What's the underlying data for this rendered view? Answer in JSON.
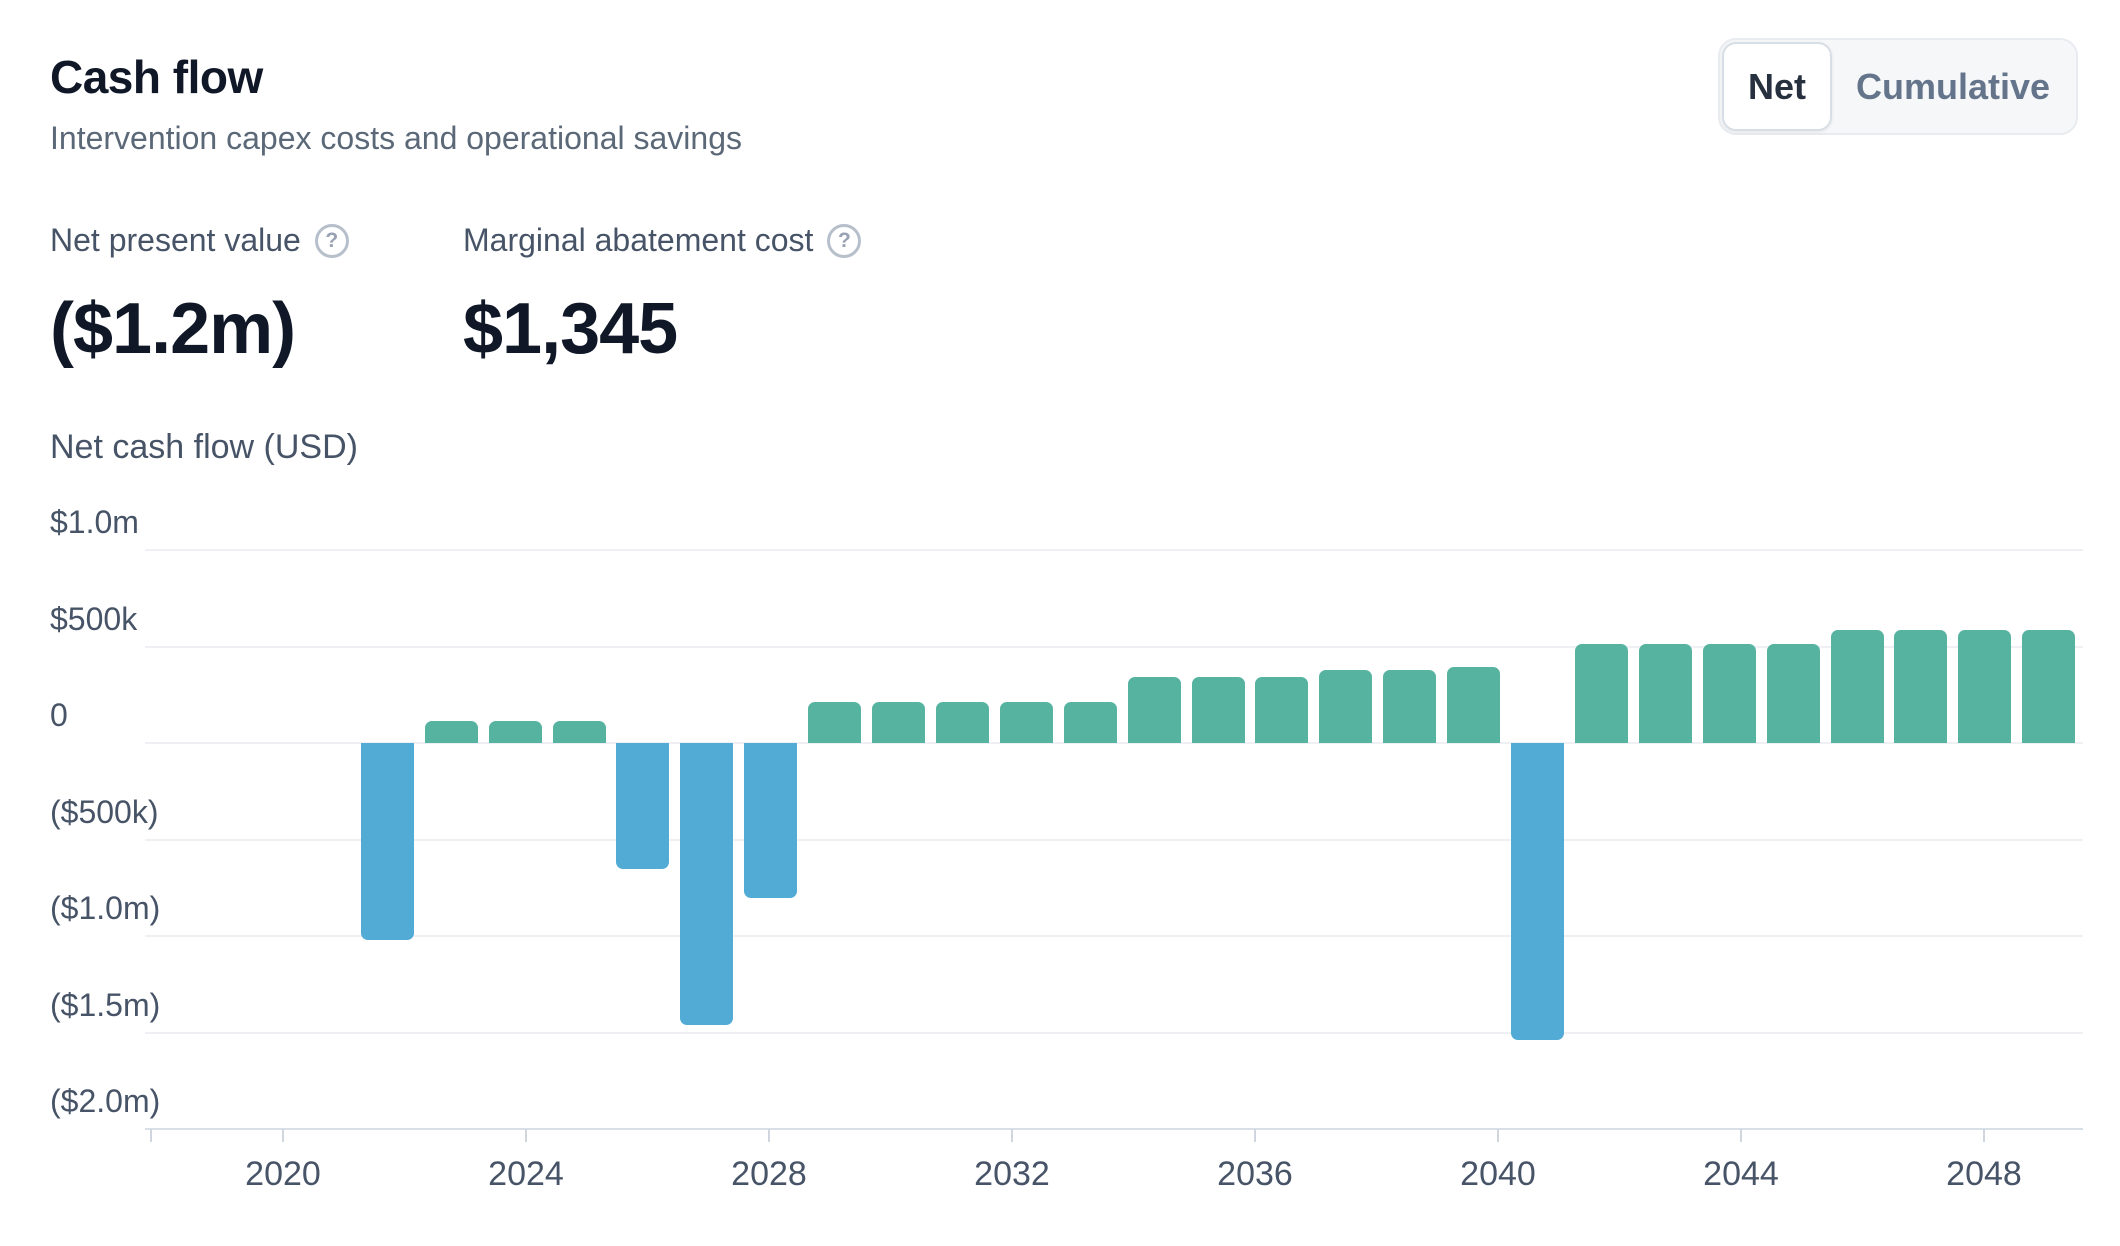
{
  "header": {
    "title": "Cash flow",
    "subtitle": "Intervention capex costs and operational savings"
  },
  "toggle": {
    "options": [
      "Net",
      "Cumulative"
    ],
    "selected": "Net"
  },
  "metrics": [
    {
      "label": "Net present value",
      "value": "($1.2m)",
      "icon": "question-circle"
    },
    {
      "label": "Marginal abatement cost",
      "value": "$1,345",
      "icon": "question-circle"
    }
  ],
  "icons": {
    "help_glyph": "?"
  },
  "colors": {
    "positive_bar": "#56b3a0",
    "negative_bar": "#51abd4",
    "title_text": "#101828",
    "muted_text": "#475467"
  },
  "chart_data": {
    "type": "bar",
    "title": "Net cash flow (USD)",
    "categories": [
      2021,
      2022,
      2023,
      2024,
      2025,
      2026,
      2027,
      2028,
      2029,
      2030,
      2031,
      2032,
      2033,
      2034,
      2035,
      2036,
      2037,
      2038,
      2039,
      2040,
      2041,
      2042,
      2043,
      2044,
      2045,
      2046,
      2047
    ],
    "values": [
      -1020000,
      115000,
      115000,
      115000,
      -655000,
      -1460000,
      -805000,
      215000,
      215000,
      215000,
      215000,
      215000,
      340000,
      340000,
      340000,
      380000,
      380000,
      395000,
      -1540000,
      515000,
      515000,
      515000,
      515000,
      585000,
      585000,
      585000,
      585000
    ],
    "xlabel": "",
    "ylabel": "Net cash flow (USD)",
    "ylim": [
      -2000000,
      1000000
    ],
    "grid": "horizontal",
    "legend": "none",
    "x_axis": {
      "tick_labels": [
        "2020",
        "2024",
        "2028",
        "2032",
        "2036",
        "2040",
        "2044",
        "2048"
      ]
    },
    "y_axis": {
      "ticks": [
        {
          "label": "$1.0m",
          "value": 1000000
        },
        {
          "label": "$500k",
          "value": 500000
        },
        {
          "label": "0",
          "value": 0
        },
        {
          "label": "($500k)",
          "value": -500000
        },
        {
          "label": "($1.0m)",
          "value": -1000000
        },
        {
          "label": "($1.5m)",
          "value": -1500000
        },
        {
          "label": "($2.0m)",
          "value": -2000000
        }
      ]
    }
  }
}
